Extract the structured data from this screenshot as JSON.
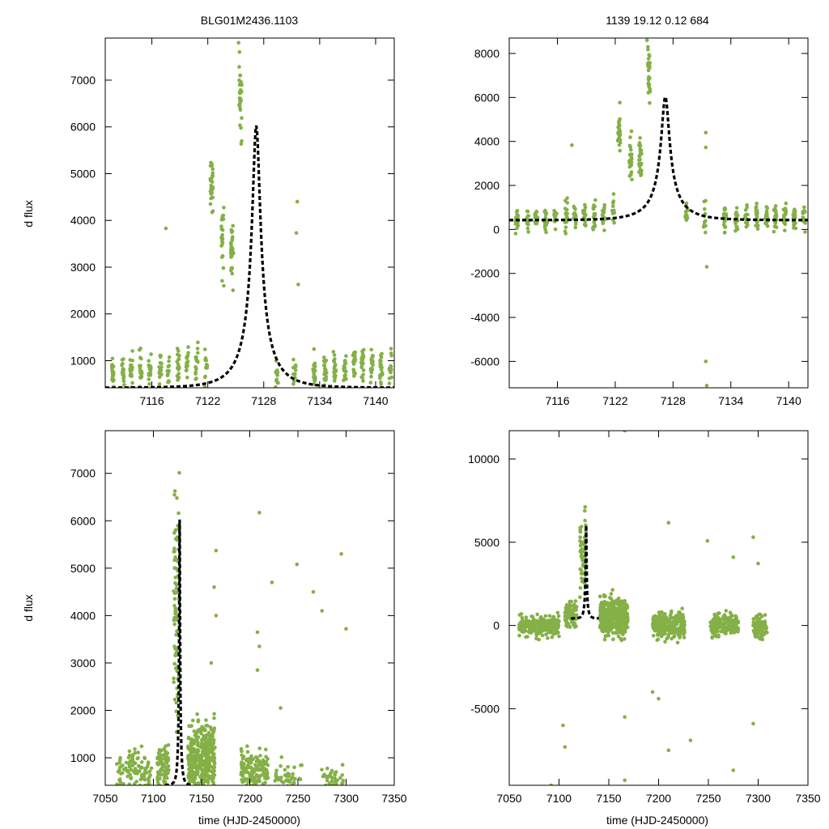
{
  "figure": {
    "title_left": "BLG01M2436.1103",
    "title_right": "1139   19.12   0.12   684"
  },
  "colors": {
    "points": "#84b047",
    "fit": "#000000",
    "frame": "#000000"
  },
  "chart_data": [
    {
      "type": "scatter",
      "id": "zoom-left",
      "title": "BLG01M2436.1103",
      "xlabel": "",
      "ylabel": "d flux",
      "xlim": [
        7111,
        7142
      ],
      "ylim": [
        420,
        7900
      ],
      "xticks": [
        7116,
        7122,
        7128,
        7134,
        7140
      ],
      "yticks": [
        1000,
        2000,
        3000,
        4000,
        5000,
        6000,
        7000
      ],
      "fit": {
        "t0": 7127.2,
        "u0": 0.12,
        "tE": 3.5,
        "fs": 760,
        "base": 420
      },
      "clusters": [
        {
          "x": 7111.8,
          "y": 780,
          "n": 22,
          "s": 260
        },
        {
          "x": 7112.9,
          "y": 700,
          "n": 16,
          "s": 230
        },
        {
          "x": 7113.8,
          "y": 760,
          "n": 20,
          "s": 250
        },
        {
          "x": 7114.8,
          "y": 820,
          "n": 18,
          "s": 280
        },
        {
          "x": 7115.8,
          "y": 840,
          "n": 16,
          "s": 270
        },
        {
          "x": 7116.9,
          "y": 880,
          "n": 20,
          "s": 320
        },
        {
          "x": 7117.8,
          "y": 820,
          "n": 14,
          "s": 270
        },
        {
          "x": 7118.8,
          "y": 880,
          "n": 20,
          "s": 300
        },
        {
          "x": 7119.8,
          "y": 860,
          "n": 18,
          "s": 280
        },
        {
          "x": 7120.8,
          "y": 930,
          "n": 16,
          "s": 300
        },
        {
          "x": 7121.8,
          "y": 960,
          "n": 12,
          "s": 280
        },
        {
          "x": 7122.4,
          "y": 4800,
          "n": 30,
          "s": 430
        },
        {
          "x": 7123.6,
          "y": 3600,
          "n": 24,
          "s": 550
        },
        {
          "x": 7124.6,
          "y": 3400,
          "n": 30,
          "s": 480
        },
        {
          "x": 7125.5,
          "y": 6600,
          "n": 30,
          "s": 520
        },
        {
          "x": 7129.4,
          "y": 720,
          "n": 14,
          "s": 240
        },
        {
          "x": 7131.3,
          "y": 800,
          "n": 10,
          "s": 250
        },
        {
          "x": 7133.4,
          "y": 760,
          "n": 18,
          "s": 240
        },
        {
          "x": 7134.6,
          "y": 760,
          "n": 20,
          "s": 260
        },
        {
          "x": 7135.6,
          "y": 820,
          "n": 18,
          "s": 280
        },
        {
          "x": 7136.7,
          "y": 840,
          "n": 20,
          "s": 290
        },
        {
          "x": 7137.7,
          "y": 860,
          "n": 20,
          "s": 290
        },
        {
          "x": 7138.6,
          "y": 860,
          "n": 18,
          "s": 280
        },
        {
          "x": 7139.6,
          "y": 880,
          "n": 20,
          "s": 290
        },
        {
          "x": 7140.6,
          "y": 840,
          "n": 18,
          "s": 290
        },
        {
          "x": 7141.6,
          "y": 820,
          "n": 16,
          "s": 280
        }
      ],
      "points": [
        [
          7117.5,
          3830
        ],
        [
          7131.6,
          4400
        ],
        [
          7131.5,
          3730
        ],
        [
          7131.7,
          2630
        ],
        [
          7125.3,
          7800
        ],
        [
          7125.4,
          7600
        ]
      ]
    },
    {
      "type": "scatter",
      "id": "zoom-right",
      "title": "1139   19.12   0.12   684",
      "xlabel": "",
      "ylabel": "",
      "xlim": [
        7111,
        7142
      ],
      "ylim": [
        -7200,
        8700
      ],
      "xticks": [
        7116,
        7122,
        7128,
        7134,
        7140
      ],
      "yticks": [
        -6000,
        -4000,
        -2000,
        0,
        2000,
        4000,
        6000,
        8000
      ],
      "fit": {
        "t0": 7127.2,
        "u0": 0.12,
        "tE": 3.5,
        "fs": 760,
        "base": 420
      },
      "clusters": [
        {
          "x": 7111.8,
          "y": 420,
          "n": 22,
          "s": 380
        },
        {
          "x": 7112.9,
          "y": 380,
          "n": 16,
          "s": 340
        },
        {
          "x": 7113.8,
          "y": 420,
          "n": 20,
          "s": 380
        },
        {
          "x": 7114.8,
          "y": 480,
          "n": 18,
          "s": 420
        },
        {
          "x": 7115.8,
          "y": 520,
          "n": 16,
          "s": 420
        },
        {
          "x": 7116.9,
          "y": 600,
          "n": 20,
          "s": 500
        },
        {
          "x": 7117.8,
          "y": 520,
          "n": 14,
          "s": 420
        },
        {
          "x": 7118.8,
          "y": 600,
          "n": 20,
          "s": 460
        },
        {
          "x": 7119.8,
          "y": 620,
          "n": 18,
          "s": 430
        },
        {
          "x": 7120.8,
          "y": 700,
          "n": 16,
          "s": 460
        },
        {
          "x": 7121.8,
          "y": 760,
          "n": 12,
          "s": 420
        },
        {
          "x": 7122.4,
          "y": 4600,
          "n": 30,
          "s": 650
        },
        {
          "x": 7123.6,
          "y": 3300,
          "n": 24,
          "s": 800
        },
        {
          "x": 7124.6,
          "y": 3200,
          "n": 30,
          "s": 700
        },
        {
          "x": 7125.5,
          "y": 6900,
          "n": 30,
          "s": 800
        },
        {
          "x": 7129.4,
          "y": 820,
          "n": 14,
          "s": 380
        },
        {
          "x": 7131.3,
          "y": 400,
          "n": 12,
          "s": 700
        },
        {
          "x": 7133.4,
          "y": 520,
          "n": 18,
          "s": 380
        },
        {
          "x": 7134.6,
          "y": 480,
          "n": 20,
          "s": 400
        },
        {
          "x": 7135.6,
          "y": 560,
          "n": 18,
          "s": 420
        },
        {
          "x": 7136.7,
          "y": 560,
          "n": 20,
          "s": 430
        },
        {
          "x": 7137.7,
          "y": 600,
          "n": 20,
          "s": 430
        },
        {
          "x": 7138.6,
          "y": 600,
          "n": 18,
          "s": 420
        },
        {
          "x": 7139.6,
          "y": 620,
          "n": 20,
          "s": 430
        },
        {
          "x": 7140.6,
          "y": 560,
          "n": 18,
          "s": 430
        },
        {
          "x": 7141.6,
          "y": 520,
          "n": 16,
          "s": 420
        }
      ],
      "points": [
        [
          7117.5,
          3830
        ],
        [
          7131.4,
          4400
        ],
        [
          7131.4,
          3730
        ],
        [
          7131.5,
          -1700
        ],
        [
          7131.4,
          -6000
        ],
        [
          7131.5,
          -7100
        ],
        [
          7125.3,
          8600
        ],
        [
          7125.4,
          8300
        ]
      ]
    },
    {
      "type": "scatter",
      "id": "full-left",
      "title": "",
      "xlabel": "time (HJD-2450000)",
      "ylabel": "d flux",
      "xlim": [
        7050,
        7350
      ],
      "ylim": [
        420,
        7900
      ],
      "xticks": [
        7050,
        7100,
        7150,
        7200,
        7250,
        7300,
        7350
      ],
      "yticks": [
        1000,
        2000,
        3000,
        4000,
        5000,
        6000,
        7000
      ],
      "fit": {
        "t0": 7127.2,
        "u0": 0.12,
        "tE": 3.5,
        "fs": 760,
        "base": 420,
        "range": [
          7112,
          7140
        ]
      },
      "clusters": [
        {
          "x": 7080,
          "y": 700,
          "n": 110,
          "s": 320,
          "w": 18
        },
        {
          "x": 7110,
          "y": 800,
          "n": 100,
          "s": 360,
          "w": 6
        },
        {
          "x": 7124,
          "y": 4200,
          "n": 90,
          "s": 1700,
          "w": 3
        },
        {
          "x": 7150,
          "y": 1000,
          "n": 420,
          "s": 520,
          "w": 14
        },
        {
          "x": 7205,
          "y": 720,
          "n": 140,
          "s": 300,
          "w": 14
        },
        {
          "x": 7240,
          "y": 600,
          "n": 40,
          "s": 200,
          "w": 14
        },
        {
          "x": 7285,
          "y": 560,
          "n": 40,
          "s": 180,
          "w": 12
        }
      ],
      "points": [
        [
          7210,
          6170
        ],
        [
          7165,
          5370
        ],
        [
          7249,
          5080
        ],
        [
          7295,
          5300
        ],
        [
          7223,
          4700
        ],
        [
          7266,
          4500
        ],
        [
          7163,
          4600
        ],
        [
          7208,
          3650
        ],
        [
          7210,
          3350
        ],
        [
          7300,
          3720
        ],
        [
          7275,
          4100
        ],
        [
          7208,
          2850
        ],
        [
          7232,
          2050
        ],
        [
          7165,
          4000
        ],
        [
          7160,
          3000
        ]
      ]
    },
    {
      "type": "scatter",
      "id": "full-right",
      "title": "",
      "xlabel": "time (HJD-2450000)",
      "ylabel": "",
      "xlim": [
        7050,
        7350
      ],
      "ylim": [
        -9600,
        11700
      ],
      "xticks": [
        7050,
        7100,
        7150,
        7200,
        7250,
        7300,
        7350
      ],
      "yticks": [
        -5000,
        0,
        5000,
        10000
      ],
      "fit": {
        "t0": 7127.2,
        "u0": 0.12,
        "tE": 3.5,
        "fs": 760,
        "base": 420,
        "range": [
          7112,
          7140
        ]
      },
      "clusters": [
        {
          "x": 7080,
          "y": 0,
          "n": 260,
          "s": 420,
          "w": 20
        },
        {
          "x": 7112,
          "y": 600,
          "n": 80,
          "s": 600,
          "w": 6
        },
        {
          "x": 7124,
          "y": 4200,
          "n": 60,
          "s": 1800,
          "w": 3
        },
        {
          "x": 7155,
          "y": 500,
          "n": 420,
          "s": 850,
          "w": 14
        },
        {
          "x": 7210,
          "y": 0,
          "n": 280,
          "s": 560,
          "w": 16
        },
        {
          "x": 7266,
          "y": 0,
          "n": 180,
          "s": 450,
          "w": 14
        },
        {
          "x": 7302,
          "y": -100,
          "n": 100,
          "s": 480,
          "w": 7
        }
      ],
      "points": [
        [
          7166,
          11700
        ],
        [
          7210,
          6170
        ],
        [
          7249,
          5080
        ],
        [
          7295,
          5300
        ],
        [
          7275,
          4100
        ],
        [
          7300,
          3720
        ],
        [
          7166,
          -5500
        ],
        [
          7104,
          -6000
        ],
        [
          7106,
          -7300
        ],
        [
          7166,
          -9300
        ],
        [
          7210,
          -7500
        ],
        [
          7232,
          -6900
        ],
        [
          7295,
          -5900
        ],
        [
          7275,
          -8700
        ],
        [
          7092,
          -9600
        ],
        [
          7194,
          -4000
        ],
        [
          7200,
          -4400
        ]
      ]
    }
  ]
}
